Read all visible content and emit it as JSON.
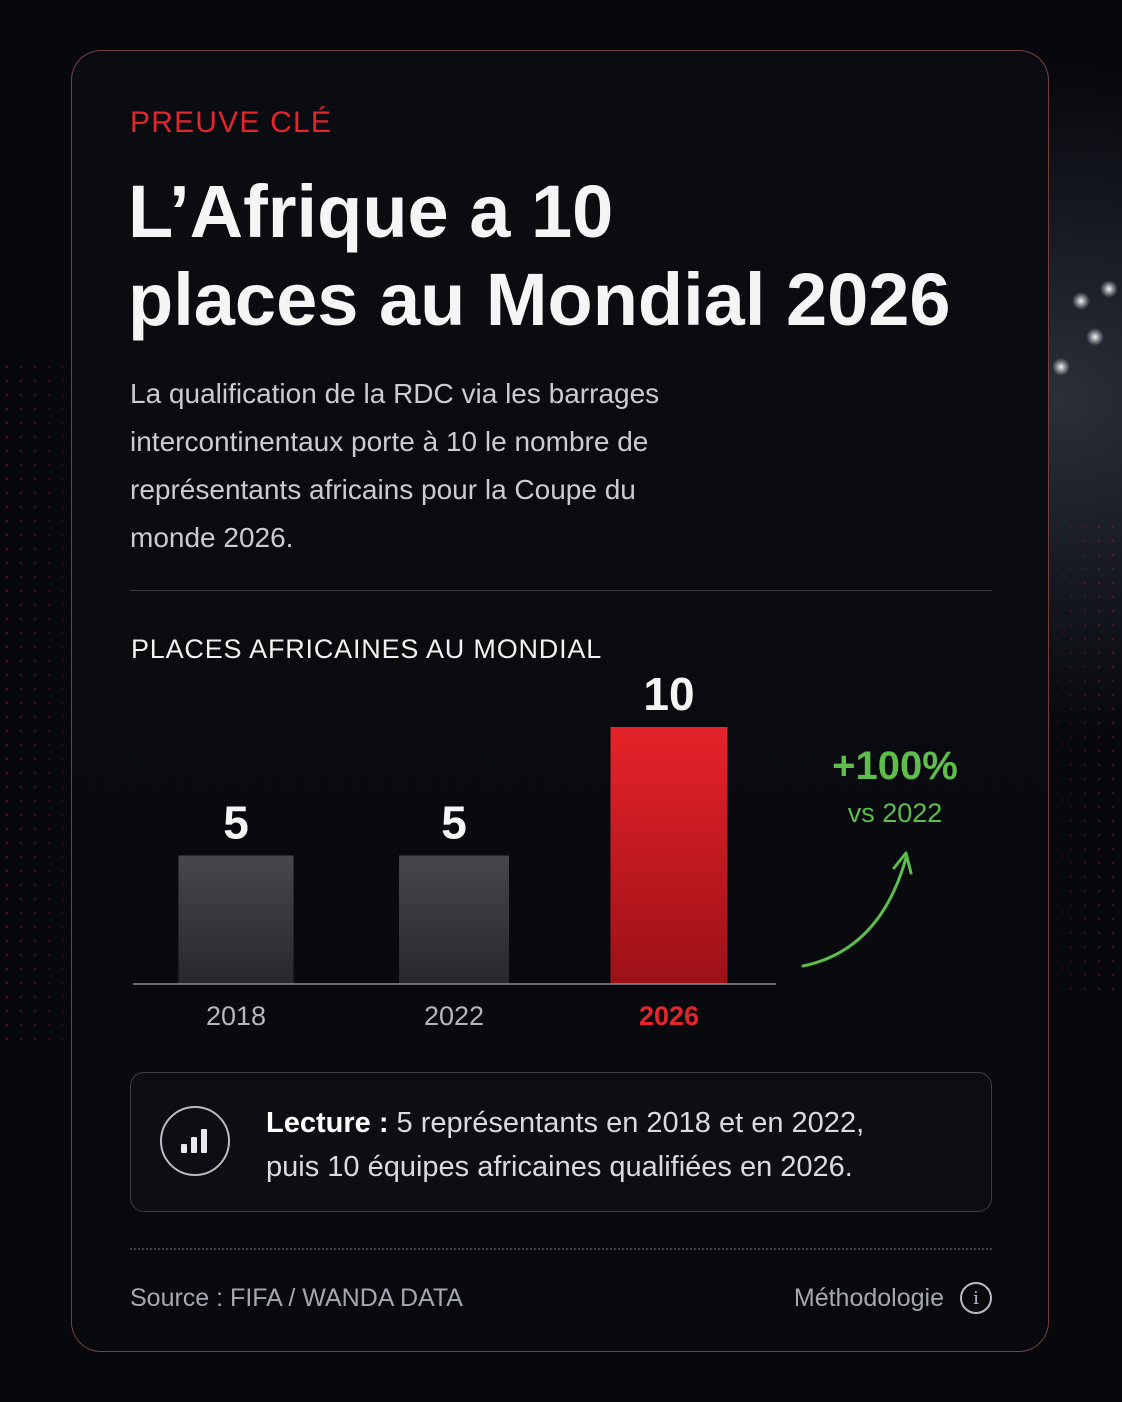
{
  "eyebrow": "PREUVE CLÉ",
  "title_lines": [
    "L’Afrique a 10",
    "places au Mondial 2026"
  ],
  "lede_lines": [
    "La qualification de la RDC via les barrages",
    "intercontinentaux porte à 10 le nombre de",
    "représentants africains pour la Coupe du",
    "monde 2026."
  ],
  "chart_data": {
    "type": "bar",
    "title": "PLACES AFRICAINES AU MONDIAL",
    "categories": [
      "2018",
      "2022",
      "2026"
    ],
    "values": [
      5,
      5,
      10
    ],
    "value_labels": [
      "5",
      "5",
      "10"
    ],
    "highlight_category": "2026",
    "ylim": [
      0,
      10
    ],
    "xlabel": "",
    "ylabel": "",
    "grid": false,
    "colors": {
      "default_bar": "#3b3d43",
      "highlight_bar": "#e0222a",
      "highlight_label": "#e3262b"
    },
    "annotation": {
      "value": "+100%",
      "caption": "vs 2022",
      "color": "#5fbd4c",
      "icon": "arrow-up-curve-icon"
    }
  },
  "reading": {
    "icon": "bar-chart-icon",
    "label": "Lecture :",
    "line1_rest": " 5 représentants en 2018 et en 2022,",
    "line2": "puis 10 équipes africaines qualifiées en 2026."
  },
  "footer": {
    "source": "Source : FIFA / WANDA DATA",
    "methodology": "Méthodologie",
    "info_icon": "info-icon"
  },
  "colors": {
    "accent": "#e3262b",
    "positive": "#5fbd4c",
    "background": "#07080c"
  }
}
